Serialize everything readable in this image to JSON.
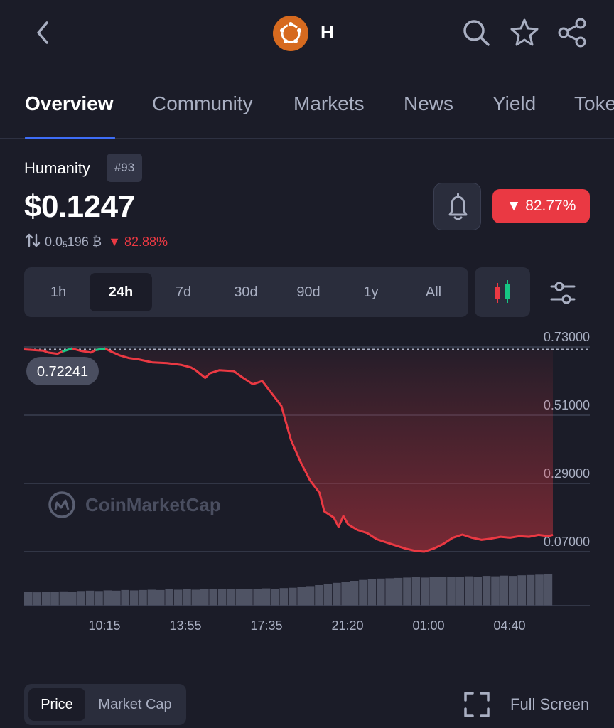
{
  "header": {
    "coin_symbol": "H",
    "icons": [
      "back-arrow-icon",
      "search-icon",
      "star-icon",
      "share-icon"
    ]
  },
  "tabs": [
    {
      "label": "Overview",
      "active": true
    },
    {
      "label": "Community",
      "active": false
    },
    {
      "label": "Markets",
      "active": false
    },
    {
      "label": "News",
      "active": false
    },
    {
      "label": "Yield",
      "active": false
    },
    {
      "label": "Toke",
      "active": false
    }
  ],
  "coin": {
    "name": "Humanity",
    "rank": "#93",
    "price": "$0.1247",
    "btc_price_prefix": "0.0",
    "btc_price_sub": "5",
    "btc_price_suffix": "196 ₿",
    "btc_change": "82.88%",
    "change_24h": "82.77%"
  },
  "ranges": [
    "1h",
    "24h",
    "7d",
    "30d",
    "90d",
    "1y",
    "All"
  ],
  "active_range": "24h",
  "colors": {
    "accent": "#3e6df7",
    "down": "#ea3943",
    "up": "#16c784",
    "brand": "#d66a1f",
    "background": "#1b1c28"
  },
  "chart_data": {
    "type": "line",
    "y_ticks": [
      "0.73000",
      "0.51000",
      "0.29000",
      "0.07000"
    ],
    "ylim": [
      0.07,
      0.73
    ],
    "x_ticks": [
      "10:15",
      "13:55",
      "17:35",
      "21:20",
      "01:00",
      "04:40"
    ],
    "open_price_label": "0.72241",
    "open_price": 0.72241,
    "watermark": "CoinMarketCap",
    "points": [
      [
        0,
        0.722
      ],
      [
        2,
        0.72
      ],
      [
        4,
        0.718
      ],
      [
        5,
        0.712
      ],
      [
        7,
        0.708
      ],
      [
        8,
        0.715
      ],
      [
        10,
        0.725
      ],
      [
        12,
        0.717
      ],
      [
        14,
        0.712
      ],
      [
        15,
        0.72
      ],
      [
        17,
        0.725
      ],
      [
        18,
        0.717
      ],
      [
        20,
        0.703
      ],
      [
        22,
        0.694
      ],
      [
        24,
        0.69
      ],
      [
        27,
        0.68
      ],
      [
        30,
        0.678
      ],
      [
        33,
        0.672
      ],
      [
        35,
        0.664
      ],
      [
        36,
        0.655
      ],
      [
        38,
        0.63
      ],
      [
        39,
        0.645
      ],
      [
        41,
        0.655
      ],
      [
        44,
        0.652
      ],
      [
        46,
        0.63
      ],
      [
        48,
        0.61
      ],
      [
        50,
        0.62
      ],
      [
        52,
        0.58
      ],
      [
        54,
        0.54
      ],
      [
        56,
        0.43
      ],
      [
        58,
        0.36
      ],
      [
        60,
        0.3
      ],
      [
        62,
        0.26
      ],
      [
        63,
        0.2
      ],
      [
        65,
        0.18
      ],
      [
        66,
        0.15
      ],
      [
        67,
        0.185
      ],
      [
        68,
        0.158
      ],
      [
        70,
        0.14
      ],
      [
        72,
        0.13
      ],
      [
        74,
        0.11
      ],
      [
        76,
        0.1
      ],
      [
        78,
        0.09
      ],
      [
        80,
        0.08
      ],
      [
        82,
        0.073
      ],
      [
        84,
        0.07
      ],
      [
        86,
        0.08
      ],
      [
        88,
        0.095
      ],
      [
        90,
        0.115
      ],
      [
        92,
        0.125
      ],
      [
        94,
        0.115
      ],
      [
        96,
        0.108
      ],
      [
        98,
        0.112
      ],
      [
        100,
        0.118
      ],
      [
        102,
        0.115
      ],
      [
        104,
        0.12
      ],
      [
        106,
        0.118
      ],
      [
        108,
        0.124
      ],
      [
        110,
        0.12
      ],
      [
        111,
        0.124
      ]
    ],
    "volume_levels": [
      0.42,
      0.41,
      0.43,
      0.42,
      0.44,
      0.43,
      0.45,
      0.46,
      0.45,
      0.47,
      0.46,
      0.48,
      0.47,
      0.48,
      0.49,
      0.48,
      0.5,
      0.49,
      0.5,
      0.49,
      0.51,
      0.5,
      0.51,
      0.5,
      0.52,
      0.51,
      0.52,
      0.53,
      0.52,
      0.54,
      0.55,
      0.57,
      0.6,
      0.63,
      0.66,
      0.7,
      0.73,
      0.76,
      0.79,
      0.81,
      0.83,
      0.84,
      0.85,
      0.86,
      0.87,
      0.86,
      0.88,
      0.87,
      0.89,
      0.88,
      0.9,
      0.89,
      0.91,
      0.9,
      0.92,
      0.91,
      0.93,
      0.94,
      0.95,
      0.96
    ]
  },
  "bottom": {
    "toggle": [
      "Price",
      "Market Cap"
    ],
    "full_screen_label": "Full Screen"
  }
}
